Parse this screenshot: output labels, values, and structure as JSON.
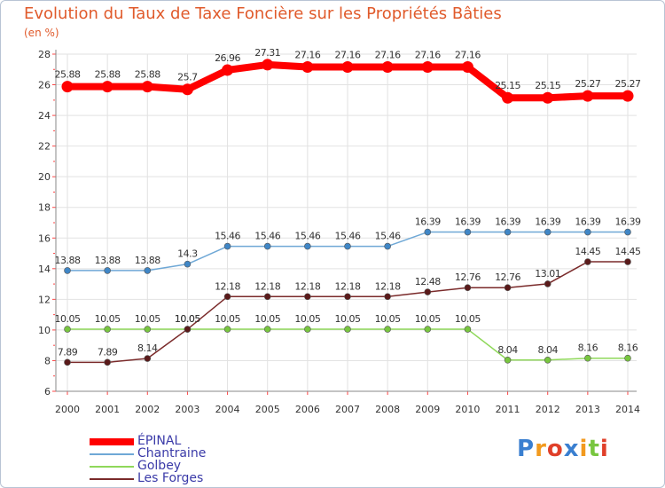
{
  "title": "Evolution du Taux de Taxe Foncière sur les Propriétés Bâties",
  "unit_label": "(en %)",
  "logo_text": "Proxiti",
  "chart_data": {
    "type": "line",
    "title": "Evolution du Taux de Taxe Foncière sur les Propriétés Bâties",
    "ylabel": "(en %)",
    "xlabel": "",
    "ylim": [
      6,
      28
    ],
    "yticks": [
      6,
      8,
      10,
      12,
      14,
      16,
      18,
      20,
      22,
      24,
      26,
      28
    ],
    "grid": true,
    "legend_position": "bottom-left",
    "categories": [
      "2000",
      "2001",
      "2002",
      "2003",
      "2004",
      "2005",
      "2006",
      "2007",
      "2008",
      "2009",
      "2010",
      "2011",
      "2012",
      "2013",
      "2014"
    ],
    "series": [
      {
        "name": "ÉPINAL",
        "color": "#ff0000",
        "marker_color": "#ff0000",
        "values": [
          25.88,
          25.88,
          25.88,
          25.7,
          26.96,
          27.31,
          27.16,
          27.16,
          27.16,
          27.16,
          27.16,
          25.15,
          25.15,
          25.27,
          25.27
        ],
        "labels": [
          "25.88",
          "25.88",
          "25.88",
          "25.7",
          "26.96",
          "27.31",
          "27.16",
          "27.16",
          "27.16",
          "27.16",
          "27.16",
          "25.15",
          "25.15",
          "25.27",
          "25.27"
        ]
      },
      {
        "name": "Chantraine",
        "color": "#6fa8d6",
        "marker_color": "#3f86c6",
        "values": [
          13.88,
          13.88,
          13.88,
          14.3,
          15.46,
          15.46,
          15.46,
          15.46,
          15.46,
          16.39,
          16.39,
          16.39,
          16.39,
          16.39,
          16.39
        ],
        "labels": [
          "13.88",
          "13.88",
          "13.88",
          "14.3",
          "15.46",
          "15.46",
          "15.46",
          "15.46",
          "15.46",
          "16.39",
          "16.39",
          "16.39",
          "16.39",
          "16.39",
          "16.39"
        ]
      },
      {
        "name": "Golbey",
        "color": "#8fd85a",
        "marker_color": "#78c63f",
        "values": [
          10.05,
          10.05,
          10.05,
          10.05,
          10.05,
          10.05,
          10.05,
          10.05,
          10.05,
          10.05,
          10.05,
          8.04,
          8.04,
          8.16,
          8.16
        ],
        "labels": [
          "10.05",
          "10.05",
          "10.05",
          "10.05",
          "10.05",
          "10.05",
          "10.05",
          "10.05",
          "10.05",
          "10.05",
          "10.05",
          "8.04",
          "8.04",
          "8.16",
          "8.16"
        ]
      },
      {
        "name": "Les Forges",
        "color": "#7a2a2a",
        "marker_color": "#5a1a1a",
        "values": [
          7.89,
          7.89,
          8.14,
          10.05,
          12.18,
          12.18,
          12.18,
          12.18,
          12.18,
          12.48,
          12.76,
          12.76,
          13.01,
          14.45,
          14.45
        ],
        "labels": [
          "7.89",
          "7.89",
          "8.14",
          "10.05",
          "12.18",
          "12.18",
          "12.18",
          "12.18",
          "12.18",
          "12.48",
          "12.76",
          "12.76",
          "13.01",
          "14.45",
          "14.45"
        ]
      }
    ]
  }
}
